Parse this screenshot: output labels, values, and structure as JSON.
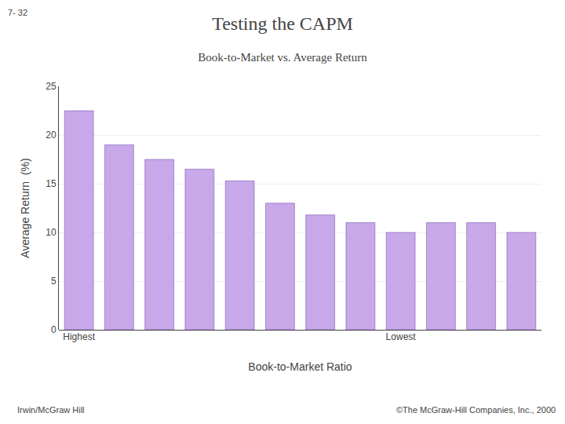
{
  "chart_data": {
    "type": "bar",
    "title": "Testing the CAPM",
    "subtitle": "Book-to-Market vs. Average Return",
    "ylabel": "Average Return  (%)",
    "xlabel": "Book-to-Market Ratio",
    "categories": [
      "Highest",
      null,
      null,
      null,
      null,
      null,
      null,
      null,
      "Lowest",
      null,
      null,
      null
    ],
    "values": [
      22.5,
      19.0,
      17.5,
      16.5,
      15.3,
      13.0,
      11.8,
      11.0,
      10.0,
      11.0,
      11.0,
      10.0
    ],
    "color": "#c8a8e8",
    "ylim": [
      0,
      25
    ],
    "yticks": [
      0,
      5,
      10,
      15,
      20,
      25
    ],
    "grid": true,
    "annotations": [
      "7- 32",
      "Irwin/McGraw Hill",
      "©The McGraw-Hill Companies, Inc., 2000"
    ]
  }
}
